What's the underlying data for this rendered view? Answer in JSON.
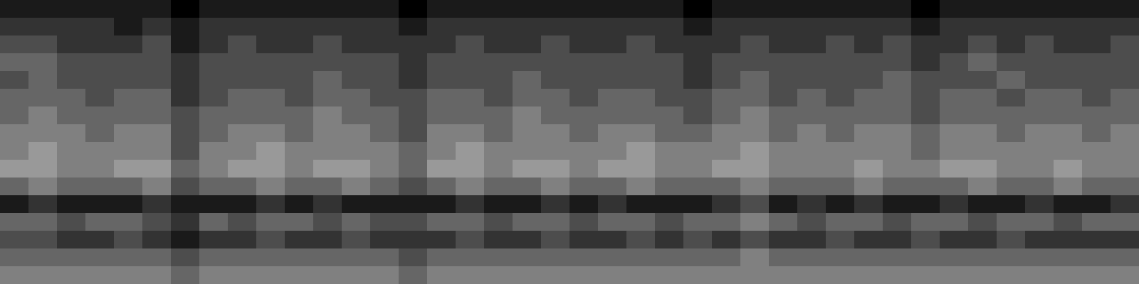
{
  "chart_data": {
    "type": "heatmap",
    "tick_labels": false,
    "zlim": [
      0,
      9
    ],
    "cells": [
      [
        1,
        1,
        1,
        1,
        1,
        1,
        0,
        1,
        1,
        1,
        1,
        1,
        1,
        1,
        0,
        1,
        1,
        1,
        1,
        1,
        1,
        1,
        1,
        1,
        0,
        1,
        1,
        1,
        1,
        1,
        1,
        1,
        0,
        1,
        1,
        1,
        1,
        1,
        1,
        1
      ],
      [
        2,
        2,
        2,
        2,
        1,
        2,
        1,
        2,
        2,
        2,
        2,
        2,
        2,
        2,
        1,
        2,
        2,
        2,
        2,
        2,
        2,
        2,
        2,
        2,
        1,
        2,
        2,
        2,
        2,
        2,
        2,
        2,
        1,
        2,
        2,
        2,
        2,
        2,
        2,
        2
      ],
      [
        3,
        3,
        2,
        2,
        2,
        3,
        1,
        2,
        3,
        2,
        2,
        3,
        2,
        2,
        2,
        2,
        3,
        2,
        2,
        3,
        2,
        2,
        3,
        2,
        2,
        2,
        3,
        2,
        2,
        3,
        2,
        3,
        2,
        2,
        3,
        2,
        3,
        2,
        2,
        3
      ],
      [
        4,
        4,
        3,
        3,
        3,
        3,
        2,
        3,
        3,
        3,
        3,
        3,
        3,
        3,
        2,
        3,
        3,
        3,
        3,
        3,
        3,
        3,
        3,
        3,
        2,
        3,
        3,
        3,
        3,
        3,
        3,
        3,
        2,
        3,
        4,
        3,
        3,
        3,
        3,
        3
      ],
      [
        3,
        4,
        3,
        3,
        3,
        3,
        2,
        3,
        3,
        3,
        3,
        4,
        3,
        3,
        2,
        3,
        3,
        3,
        4,
        3,
        3,
        3,
        3,
        3,
        2,
        3,
        4,
        3,
        3,
        3,
        3,
        4,
        3,
        3,
        3,
        4,
        3,
        3,
        3,
        3
      ],
      [
        4,
        4,
        4,
        3,
        4,
        4,
        2,
        3,
        4,
        4,
        3,
        4,
        4,
        3,
        3,
        4,
        4,
        3,
        4,
        4,
        3,
        4,
        4,
        3,
        3,
        4,
        4,
        3,
        4,
        3,
        4,
        4,
        3,
        4,
        4,
        3,
        4,
        4,
        3,
        4
      ],
      [
        4,
        5,
        4,
        4,
        4,
        4,
        3,
        4,
        4,
        4,
        4,
        5,
        4,
        4,
        3,
        4,
        4,
        4,
        5,
        4,
        4,
        4,
        4,
        4,
        3,
        4,
        5,
        4,
        4,
        4,
        4,
        4,
        3,
        4,
        4,
        4,
        4,
        4,
        4,
        4
      ],
      [
        5,
        5,
        5,
        4,
        5,
        5,
        3,
        4,
        5,
        5,
        4,
        5,
        5,
        4,
        3,
        5,
        5,
        4,
        5,
        5,
        4,
        5,
        5,
        4,
        4,
        5,
        5,
        4,
        5,
        4,
        5,
        5,
        4,
        5,
        5,
        4,
        5,
        5,
        4,
        5
      ],
      [
        5,
        6,
        5,
        5,
        5,
        5,
        3,
        5,
        5,
        6,
        5,
        5,
        5,
        5,
        4,
        5,
        6,
        5,
        5,
        5,
        5,
        5,
        6,
        5,
        5,
        5,
        6,
        5,
        5,
        5,
        5,
        5,
        4,
        5,
        5,
        5,
        5,
        5,
        5,
        5
      ],
      [
        6,
        6,
        5,
        5,
        6,
        6,
        4,
        5,
        6,
        6,
        5,
        6,
        6,
        5,
        4,
        6,
        6,
        5,
        6,
        6,
        5,
        6,
        6,
        5,
        5,
        6,
        6,
        5,
        5,
        5,
        6,
        5,
        5,
        6,
        6,
        5,
        5,
        6,
        5,
        5
      ],
      [
        4,
        5,
        4,
        4,
        4,
        5,
        3,
        4,
        4,
        5,
        4,
        4,
        5,
        4,
        3,
        4,
        5,
        4,
        4,
        5,
        4,
        4,
        5,
        4,
        4,
        4,
        5,
        4,
        4,
        4,
        5,
        4,
        4,
        4,
        5,
        4,
        4,
        5,
        4,
        4
      ],
      [
        1,
        2,
        1,
        1,
        1,
        2,
        1,
        1,
        1,
        2,
        1,
        2,
        1,
        1,
        1,
        1,
        2,
        1,
        1,
        2,
        1,
        2,
        1,
        1,
        1,
        2,
        3,
        1,
        2,
        1,
        2,
        1,
        1,
        2,
        1,
        1,
        2,
        1,
        1,
        2
      ],
      [
        4,
        4,
        3,
        4,
        4,
        3,
        2,
        4,
        3,
        4,
        4,
        3,
        4,
        3,
        3,
        4,
        4,
        3,
        4,
        4,
        3,
        4,
        4,
        3,
        4,
        4,
        5,
        4,
        3,
        4,
        4,
        3,
        4,
        4,
        3,
        4,
        4,
        3,
        4,
        4
      ],
      [
        3,
        3,
        2,
        2,
        3,
        2,
        1,
        2,
        2,
        3,
        2,
        2,
        3,
        2,
        2,
        2,
        3,
        2,
        2,
        3,
        2,
        2,
        3,
        2,
        3,
        2,
        3,
        2,
        2,
        3,
        2,
        2,
        3,
        2,
        2,
        3,
        2,
        2,
        2,
        2
      ],
      [
        4,
        4,
        4,
        4,
        4,
        4,
        3,
        4,
        4,
        4,
        4,
        4,
        4,
        4,
        3,
        4,
        4,
        4,
        4,
        4,
        4,
        4,
        4,
        4,
        4,
        4,
        5,
        4,
        4,
        4,
        4,
        4,
        4,
        4,
        4,
        4,
        4,
        4,
        4,
        4
      ],
      [
        5,
        5,
        5,
        5,
        5,
        5,
        4,
        5,
        5,
        5,
        5,
        5,
        5,
        5,
        4,
        5,
        5,
        5,
        5,
        5,
        5,
        5,
        5,
        5,
        5,
        5,
        5,
        5,
        5,
        5,
        5,
        5,
        5,
        5,
        5,
        5,
        5,
        5,
        5,
        5
      ]
    ]
  }
}
